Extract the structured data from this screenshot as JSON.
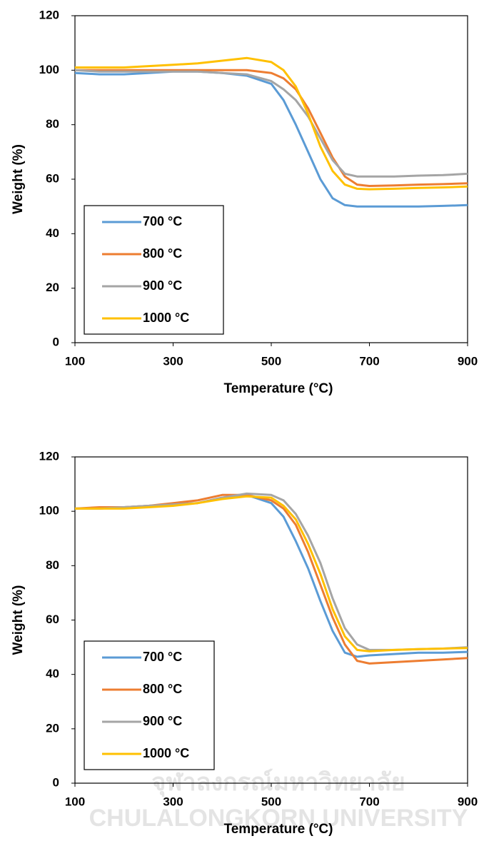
{
  "chart_data": [
    {
      "type": "line",
      "xlabel": "Temperature (°C)",
      "ylabel": "Weight (%)",
      "x": [
        100,
        150,
        200,
        250,
        300,
        350,
        400,
        450,
        500,
        525,
        550,
        575,
        600,
        625,
        650,
        675,
        700,
        750,
        800,
        850,
        900
      ],
      "series": [
        {
          "name": "700 °C",
          "color": "#5b9bd5",
          "values": [
            99,
            98.5,
            98.5,
            99,
            99.5,
            99.5,
            99,
            98,
            95,
            89,
            80,
            70,
            60,
            53,
            50.5,
            50,
            50,
            50,
            50,
            50.2,
            50.5
          ]
        },
        {
          "name": "800 °C",
          "color": "#ed7d31",
          "values": [
            100,
            100,
            100,
            100,
            100,
            100,
            100,
            100,
            99,
            97,
            93,
            86,
            77,
            68,
            61,
            58,
            57.5,
            57.7,
            58,
            58.2,
            58.5
          ]
        },
        {
          "name": "900 °C",
          "color": "#a5a5a5",
          "values": [
            100,
            99.5,
            99.5,
            99.5,
            99.5,
            99.5,
            99,
            98.5,
            96,
            93,
            89,
            83,
            75,
            67,
            62,
            61,
            61,
            61,
            61.3,
            61.5,
            62
          ]
        },
        {
          "name": "1000 °C",
          "color": "#ffc000",
          "values": [
            101,
            101,
            101,
            101.5,
            102,
            102.5,
            103.5,
            104.5,
            103,
            100,
            94,
            84,
            72,
            63,
            58,
            56.5,
            56.3,
            56.5,
            56.8,
            57,
            57.3
          ]
        }
      ],
      "xlim": [
        100,
        900
      ],
      "xticks": [
        100,
        300,
        500,
        700,
        900
      ],
      "ylim": [
        0,
        120
      ],
      "yticks": [
        0,
        20,
        40,
        60,
        80,
        100,
        120
      ],
      "grid": false,
      "legend": "lower left"
    },
    {
      "type": "line",
      "xlabel": "Temperature (°C)",
      "ylabel": "Weight (%)",
      "x": [
        100,
        150,
        200,
        250,
        300,
        350,
        400,
        450,
        500,
        525,
        550,
        575,
        600,
        625,
        650,
        675,
        700,
        750,
        800,
        850,
        900
      ],
      "series": [
        {
          "name": "700 °C",
          "color": "#5b9bd5",
          "values": [
            101,
            101,
            101.5,
            102,
            102.5,
            103,
            105,
            106,
            103,
            98,
            89,
            79,
            67,
            56,
            48,
            46.5,
            47,
            47.5,
            48,
            48,
            48.3
          ]
        },
        {
          "name": "800 °C",
          "color": "#ed7d31",
          "values": [
            101,
            101.5,
            101.5,
            102,
            103,
            104,
            106,
            106,
            104,
            101,
            95,
            85,
            73,
            61,
            51,
            45,
            44,
            44.5,
            45,
            45.5,
            46
          ]
        },
        {
          "name": "900 °C",
          "color": "#a5a5a5",
          "values": [
            101,
            101,
            101.5,
            102,
            102.5,
            103,
            105,
            106.5,
            106,
            104,
            99,
            91,
            81,
            68,
            57,
            51,
            49,
            49,
            49.3,
            49.5,
            50
          ]
        },
        {
          "name": "1000 °C",
          "color": "#ffc000",
          "values": [
            101,
            101,
            101,
            101.5,
            102,
            103,
            104.5,
            105.5,
            105,
            102,
            97,
            88,
            77,
            64,
            54,
            49,
            48.5,
            49,
            49.3,
            49.5,
            49.7
          ]
        }
      ],
      "xlim": [
        100,
        900
      ],
      "xticks": [
        100,
        300,
        500,
        700,
        900
      ],
      "ylim": [
        0,
        120
      ],
      "yticks": [
        0,
        20,
        40,
        60,
        80,
        100,
        120
      ],
      "grid": false,
      "legend": "lower left"
    }
  ],
  "watermark": {
    "thai": "จุฬาลงกรณ์มหาวิทยาลัย",
    "english": "CHULALONGKORN UNIVERSITY"
  }
}
